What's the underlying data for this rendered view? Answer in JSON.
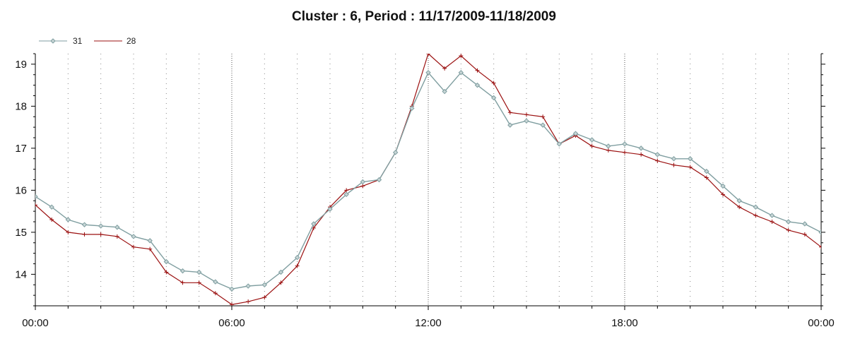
{
  "chart_data": {
    "type": "line",
    "title": "Cluster : 6, Period : 11/17/2009-11/18/2009",
    "xlabel": "",
    "ylabel": "",
    "x_unit": "hours from 00:00 on 11/17/2009",
    "xlim": [
      0,
      24
    ],
    "ylim": [
      13.25,
      19.25
    ],
    "x_ticks": [
      {
        "x": 0,
        "label": "00:00"
      },
      {
        "x": 6,
        "label": "06:00"
      },
      {
        "x": 12,
        "label": "12:00"
      },
      {
        "x": 18,
        "label": "18:00"
      },
      {
        "x": 24,
        "label": "00:00"
      }
    ],
    "y_ticks": [
      {
        "y": 14,
        "label": "14"
      },
      {
        "y": 15,
        "label": "15"
      },
      {
        "y": 16,
        "label": "16"
      },
      {
        "y": 17,
        "label": "17"
      },
      {
        "y": 18,
        "label": "18"
      },
      {
        "y": 19,
        "label": "19"
      }
    ],
    "grid": true,
    "legend_position": "top-left",
    "series": [
      {
        "name": "31",
        "color": "#7f9ea0",
        "marker": "diamond",
        "points": [
          [
            0,
            15.85
          ],
          [
            0.5,
            15.6
          ],
          [
            1.0,
            15.3
          ],
          [
            1.5,
            15.18
          ],
          [
            2.0,
            15.15
          ],
          [
            2.5,
            15.12
          ],
          [
            3.0,
            14.9
          ],
          [
            3.5,
            14.8
          ],
          [
            4.0,
            14.3
          ],
          [
            4.5,
            14.08
          ],
          [
            5.0,
            14.05
          ],
          [
            5.5,
            13.82
          ],
          [
            6.0,
            13.65
          ],
          [
            6.5,
            13.72
          ],
          [
            7.0,
            13.75
          ],
          [
            7.5,
            14.05
          ],
          [
            8.0,
            14.4
          ],
          [
            8.5,
            15.2
          ],
          [
            9.0,
            15.55
          ],
          [
            9.5,
            15.9
          ],
          [
            10.0,
            16.2
          ],
          [
            10.5,
            16.25
          ],
          [
            11.0,
            16.9
          ],
          [
            11.5,
            17.95
          ],
          [
            12.0,
            18.8
          ],
          [
            12.5,
            18.35
          ],
          [
            13.0,
            18.8
          ],
          [
            13.5,
            18.5
          ],
          [
            14.0,
            18.2
          ],
          [
            14.5,
            17.55
          ],
          [
            15.0,
            17.65
          ],
          [
            15.5,
            17.55
          ],
          [
            16.0,
            17.1
          ],
          [
            16.5,
            17.35
          ],
          [
            17.0,
            17.2
          ],
          [
            17.5,
            17.05
          ],
          [
            18.0,
            17.1
          ],
          [
            18.5,
            17.0
          ],
          [
            19.0,
            16.85
          ],
          [
            19.5,
            16.75
          ],
          [
            20.0,
            16.75
          ],
          [
            20.5,
            16.45
          ],
          [
            21.0,
            16.1
          ],
          [
            21.5,
            15.75
          ],
          [
            22.0,
            15.6
          ],
          [
            22.5,
            15.4
          ],
          [
            23.0,
            15.25
          ],
          [
            23.5,
            15.2
          ],
          [
            24.0,
            15.0
          ]
        ]
      },
      {
        "name": "28",
        "color": "#9b1010",
        "marker": "plus",
        "points": [
          [
            0,
            15.65
          ],
          [
            0.5,
            15.3
          ],
          [
            1.0,
            15.0
          ],
          [
            1.5,
            14.95
          ],
          [
            2.0,
            14.95
          ],
          [
            2.5,
            14.9
          ],
          [
            3.0,
            14.65
          ],
          [
            3.5,
            14.6
          ],
          [
            4.0,
            14.05
          ],
          [
            4.5,
            13.8
          ],
          [
            5.0,
            13.8
          ],
          [
            5.5,
            13.55
          ],
          [
            6.0,
            13.28
          ],
          [
            6.5,
            13.35
          ],
          [
            7.0,
            13.45
          ],
          [
            7.5,
            13.8
          ],
          [
            8.0,
            14.2
          ],
          [
            8.5,
            15.1
          ],
          [
            9.0,
            15.6
          ],
          [
            9.5,
            16.0
          ],
          [
            10.0,
            16.1
          ],
          [
            10.5,
            16.25
          ],
          [
            11.0,
            16.9
          ],
          [
            11.5,
            18.0
          ],
          [
            12.0,
            19.25
          ],
          [
            12.5,
            18.9
          ],
          [
            13.0,
            19.2
          ],
          [
            13.5,
            18.85
          ],
          [
            14.0,
            18.55
          ],
          [
            14.5,
            17.85
          ],
          [
            15.0,
            17.8
          ],
          [
            15.5,
            17.75
          ],
          [
            16.0,
            17.1
          ],
          [
            16.5,
            17.3
          ],
          [
            17.0,
            17.05
          ],
          [
            17.5,
            16.95
          ],
          [
            18.0,
            16.9
          ],
          [
            18.5,
            16.85
          ],
          [
            19.0,
            16.7
          ],
          [
            19.5,
            16.6
          ],
          [
            20.0,
            16.55
          ],
          [
            20.5,
            16.3
          ],
          [
            21.0,
            15.9
          ],
          [
            21.5,
            15.6
          ],
          [
            22.0,
            15.4
          ],
          [
            22.5,
            15.25
          ],
          [
            23.0,
            15.05
          ],
          [
            23.5,
            14.95
          ],
          [
            24.0,
            14.65
          ]
        ]
      }
    ]
  }
}
